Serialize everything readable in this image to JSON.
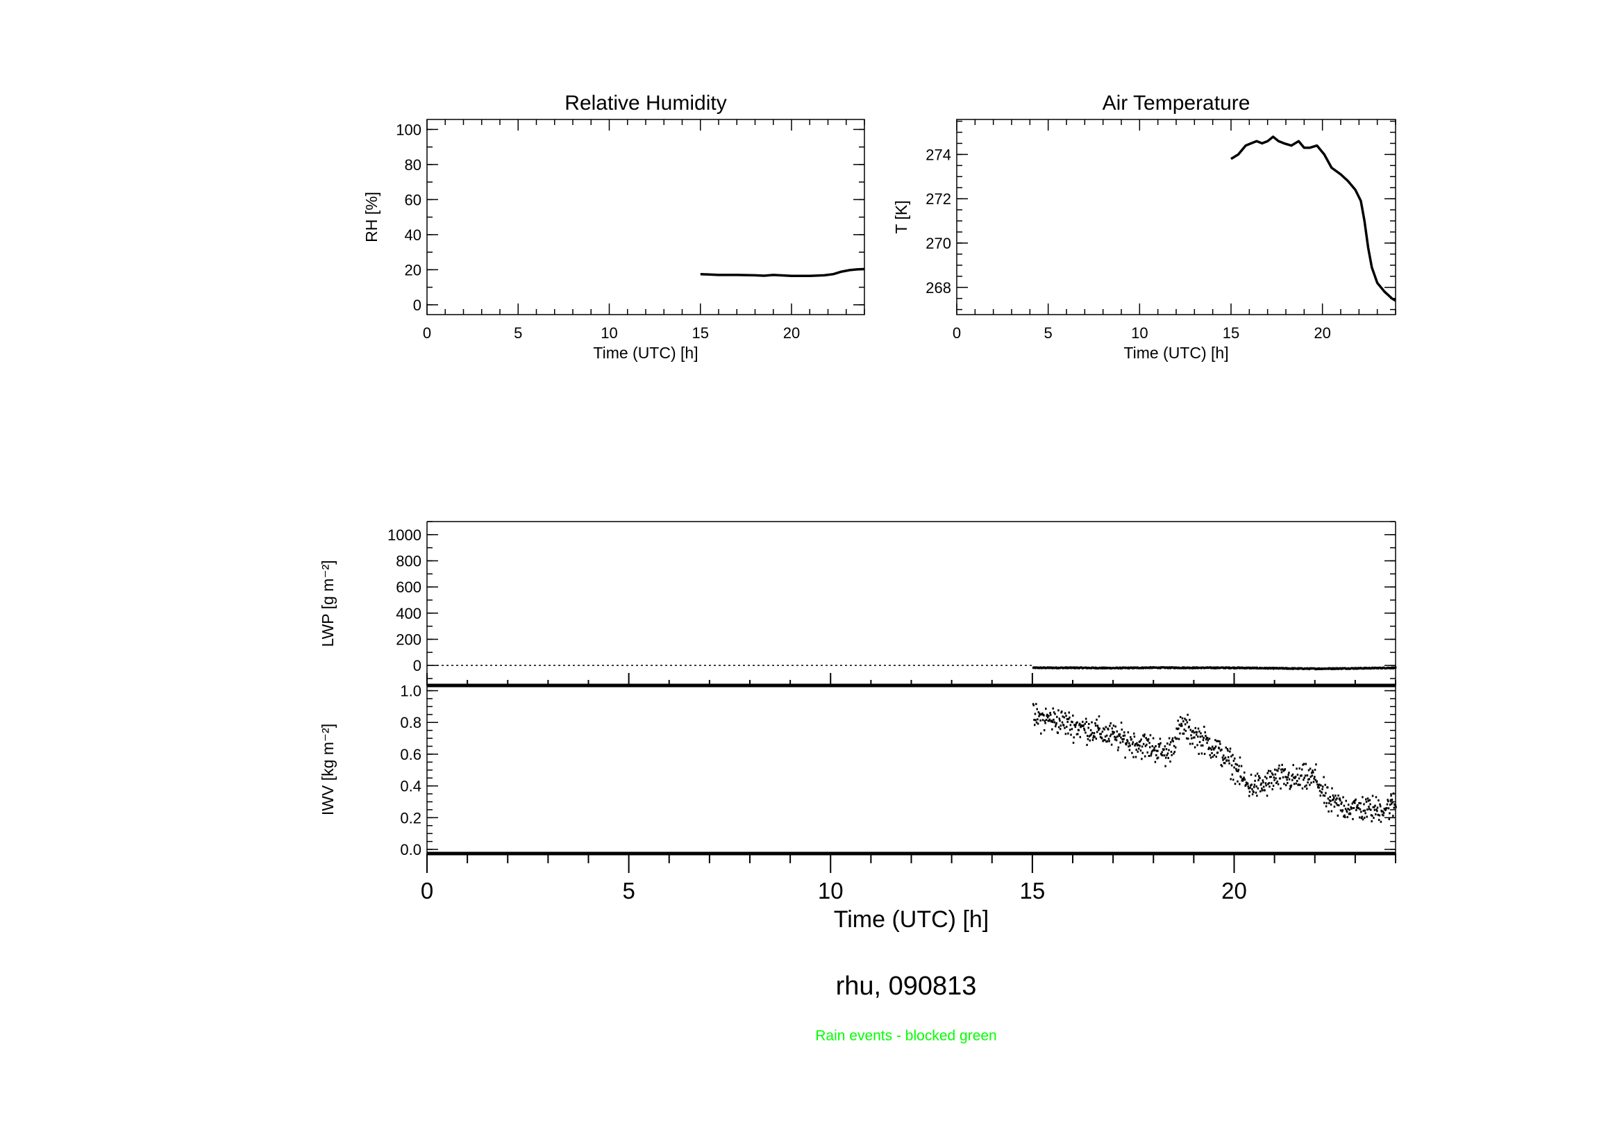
{
  "chart_data": [
    {
      "id": "rh",
      "type": "line",
      "title": "Relative Humidity",
      "xlabel": "Time (UTC) [h]",
      "ylabel": "RH [%]",
      "xlim": [
        0,
        24
      ],
      "ylim": [
        -5.6,
        105.7
      ],
      "xticks": [
        0,
        5,
        10,
        15,
        20
      ],
      "yticks": [
        0,
        20,
        40,
        60,
        80,
        100
      ],
      "x": [
        15,
        16,
        17,
        18,
        18.5,
        19,
        20,
        21,
        21.8,
        22.3,
        22.7,
        23.2,
        23.6,
        24
      ],
      "y": [
        17.5,
        17,
        17,
        16.8,
        16.6,
        17,
        16.5,
        16.5,
        16.8,
        17.5,
        18.8,
        19.8,
        20.2,
        20.4
      ]
    },
    {
      "id": "temp",
      "type": "line",
      "title": "Air Temperature",
      "xlabel": "Time (UTC) [h]",
      "ylabel": "T [K]",
      "xlim": [
        0,
        24
      ],
      "ylim": [
        266.77,
        275.58
      ],
      "xticks": [
        0,
        5,
        10,
        15,
        20
      ],
      "yticks": [
        268,
        270,
        272,
        274
      ],
      "x": [
        15,
        15.4,
        15.8,
        16.1,
        16.4,
        16.7,
        17,
        17.3,
        17.6,
        17.9,
        18.3,
        18.7,
        19.0,
        19.3,
        19.7,
        20.1,
        20.5,
        21.0,
        21.4,
        21.8,
        22.1,
        22.3,
        22.5,
        22.7,
        23.0,
        23.4,
        23.8,
        24
      ],
      "y": [
        273.8,
        274.0,
        274.4,
        274.5,
        274.6,
        274.5,
        274.6,
        274.8,
        274.6,
        274.5,
        274.4,
        274.6,
        274.3,
        274.3,
        274.4,
        274.0,
        273.4,
        273.1,
        272.8,
        272.4,
        271.9,
        271.0,
        269.8,
        268.9,
        268.2,
        267.8,
        267.5,
        267.4
      ]
    },
    {
      "id": "lwp",
      "type": "scatter",
      "xlabel": "",
      "ylabel": "LWP [g m⁻²]",
      "xlim": [
        0,
        24
      ],
      "ylim": [
        -153,
        1100
      ],
      "yticks": [
        0,
        200,
        400,
        600,
        800,
        1000
      ],
      "zero_line": "dotted",
      "x": [
        15,
        16,
        17,
        18,
        19,
        20,
        21,
        22,
        23,
        24
      ],
      "y": [
        -18,
        -18,
        -20,
        -17,
        -18,
        -18,
        -22,
        -25,
        -22,
        -18
      ]
    },
    {
      "id": "iwv",
      "type": "scatter",
      "xlabel": "Time (UTC) [h]",
      "ylabel": "IWV [kg m⁻²]",
      "xlim": [
        0,
        24
      ],
      "ylim": [
        -0.026,
        1.033
      ],
      "xticks": [
        0,
        5,
        10,
        15,
        20
      ],
      "yticks": [
        "0.0",
        "0.2",
        "0.4",
        "0.6",
        "0.8",
        "1.0"
      ],
      "x": [
        15,
        15.5,
        16,
        16.5,
        17,
        17.5,
        18,
        18.3,
        18.7,
        19,
        19.5,
        20,
        20.3,
        20.7,
        21,
        21.5,
        22,
        22.3,
        22.7,
        23,
        23.5,
        24
      ],
      "y": [
        0.83,
        0.82,
        0.78,
        0.75,
        0.71,
        0.67,
        0.64,
        0.6,
        0.78,
        0.72,
        0.64,
        0.52,
        0.4,
        0.4,
        0.45,
        0.44,
        0.45,
        0.3,
        0.27,
        0.26,
        0.25,
        0.28
      ],
      "scatter_spread": 0.06
    }
  ],
  "footer": {
    "station_date": "rhu, 090813",
    "rain_note": "Rain events - blocked green",
    "rain_note_color": "#00ff00"
  }
}
